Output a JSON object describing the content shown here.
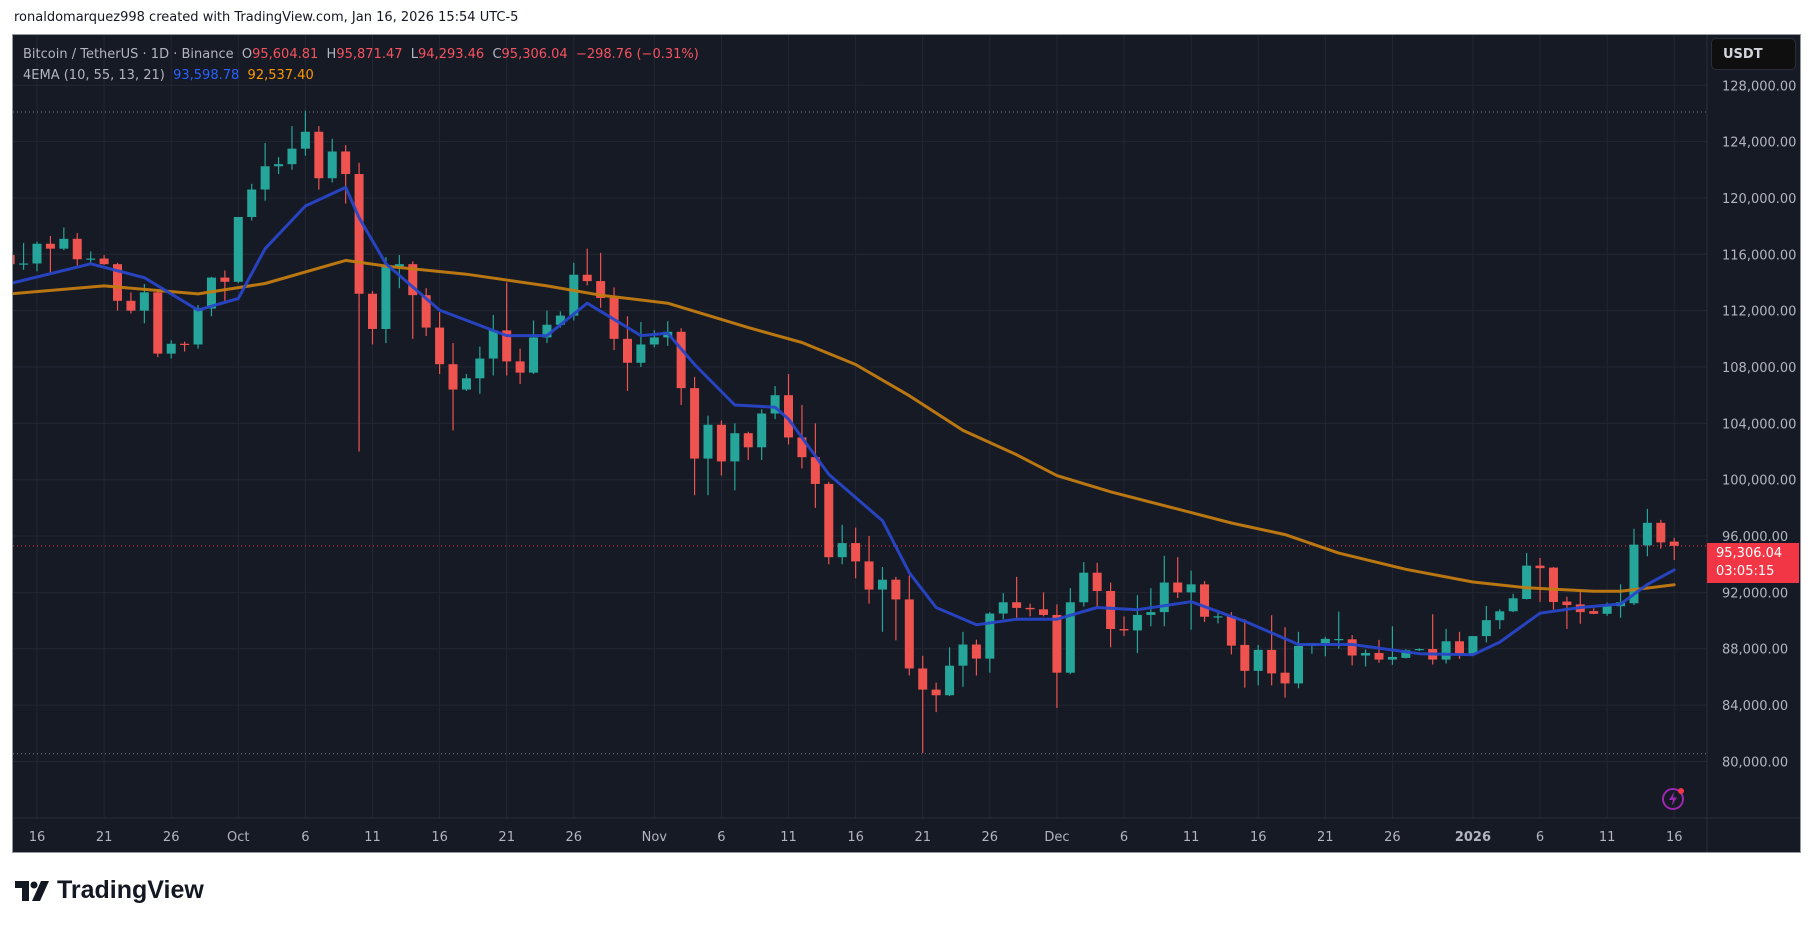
{
  "credit": "ronaldomarquez998 created with TradingView.com, Jan 16, 2026 15:54 UTC-5",
  "legend": {
    "symbol": "Bitcoin / TetherUS · 1D · Binance",
    "o_label": "O",
    "o": "95,604.81",
    "h_label": "H",
    "h": "95,871.47",
    "l_label": "L",
    "l": "94,293.46",
    "c_label": "C",
    "c": "95,306.04",
    "change": "−298.76 (−0.31%)",
    "indicator": "4EMA (10, 55, 13, 21)",
    "ema_fast": "93,598.78",
    "ema_slow": "92,537.40"
  },
  "price_axis": {
    "currency": "USDT",
    "ticks": [
      "128,000.00",
      "124,000.00",
      "120,000.00",
      "116,000.00",
      "112,000.00",
      "108,000.00",
      "104,000.00",
      "100,000.00",
      "96,000.00",
      "92,000.00",
      "88,000.00",
      "84,000.00",
      "80,000.00"
    ],
    "last_price": "95,306.04",
    "countdown": "03:05:15"
  },
  "time_axis": {
    "ticks": [
      {
        "date": "2025-09-16",
        "label": "16"
      },
      {
        "date": "2025-09-21",
        "label": "21"
      },
      {
        "date": "2025-09-26",
        "label": "26"
      },
      {
        "date": "2025-10-01",
        "label": "Oct"
      },
      {
        "date": "2025-10-06",
        "label": "6"
      },
      {
        "date": "2025-10-11",
        "label": "11"
      },
      {
        "date": "2025-10-16",
        "label": "16"
      },
      {
        "date": "2025-10-21",
        "label": "21"
      },
      {
        "date": "2025-10-26",
        "label": "26"
      },
      {
        "date": "2025-11-01",
        "label": "Nov"
      },
      {
        "date": "2025-11-06",
        "label": "6"
      },
      {
        "date": "2025-11-11",
        "label": "11"
      },
      {
        "date": "2025-11-16",
        "label": "16"
      },
      {
        "date": "2025-11-21",
        "label": "21"
      },
      {
        "date": "2025-11-26",
        "label": "26"
      },
      {
        "date": "2025-12-01",
        "label": "Dec"
      },
      {
        "date": "2025-12-06",
        "label": "6"
      },
      {
        "date": "2025-12-11",
        "label": "11"
      },
      {
        "date": "2025-12-16",
        "label": "16"
      },
      {
        "date": "2025-12-21",
        "label": "21"
      },
      {
        "date": "2025-12-26",
        "label": "26"
      },
      {
        "date": "2026-01-01",
        "label": "2026",
        "bold": true
      },
      {
        "date": "2026-01-06",
        "label": "6"
      },
      {
        "date": "2026-01-11",
        "label": "11"
      },
      {
        "date": "2026-01-16",
        "label": "16"
      }
    ]
  },
  "colors": {
    "up": "#26A69A",
    "down": "#EF5350",
    "ema_fast": "#2846C8",
    "ema_slow": "#C27B10",
    "background": "#161A25",
    "grid": "#232733"
  },
  "icons": {
    "alert": "lightning-icon",
    "logo": "tradingview-logo"
  },
  "brand": "TradingView",
  "chart_data": {
    "type": "candlestick",
    "ylim": [
      76000,
      130000
    ],
    "grid": true,
    "price_lines": {
      "high": 126100,
      "low": 80550,
      "last": 95306.04
    },
    "candles": [
      [
        "2025-09-14",
        115950,
        116100,
        115100,
        115300
      ],
      [
        "2025-09-15",
        115300,
        116800,
        114900,
        115350
      ],
      [
        "2025-09-16",
        115350,
        116900,
        114800,
        116750
      ],
      [
        "2025-09-17",
        116750,
        117300,
        114700,
        116400
      ],
      [
        "2025-09-18",
        116400,
        117900,
        116300,
        117100
      ],
      [
        "2025-09-19",
        117100,
        117500,
        115200,
        115650
      ],
      [
        "2025-09-20",
        115650,
        116200,
        115300,
        115700
      ],
      [
        "2025-09-21",
        115700,
        115950,
        115250,
        115300
      ],
      [
        "2025-09-22",
        115300,
        115400,
        112000,
        112700
      ],
      [
        "2025-09-23",
        112700,
        113300,
        111800,
        112000
      ],
      [
        "2025-09-24",
        112000,
        113900,
        111100,
        113300
      ],
      [
        "2025-09-25",
        113300,
        113500,
        108700,
        108950
      ],
      [
        "2025-09-26",
        108950,
        109900,
        108600,
        109650
      ],
      [
        "2025-09-27",
        109650,
        109800,
        109100,
        109600
      ],
      [
        "2025-09-28",
        109600,
        112400,
        109300,
        112150
      ],
      [
        "2025-09-29",
        112150,
        114400,
        111600,
        114350
      ],
      [
        "2025-09-30",
        114350,
        114850,
        112700,
        114050
      ],
      [
        "2025-10-01",
        114050,
        118650,
        113950,
        118650
      ],
      [
        "2025-10-02",
        118650,
        121000,
        118400,
        120600
      ],
      [
        "2025-10-03",
        120600,
        123900,
        119800,
        122250
      ],
      [
        "2025-10-04",
        122250,
        122900,
        121700,
        122400
      ],
      [
        "2025-10-05",
        122400,
        125100,
        122000,
        123500
      ],
      [
        "2025-10-06",
        123500,
        126200,
        123000,
        124700
      ],
      [
        "2025-10-07",
        124700,
        125100,
        120600,
        121400
      ],
      [
        "2025-10-08",
        121400,
        124200,
        121100,
        123300
      ],
      [
        "2025-10-09",
        123300,
        123750,
        119600,
        121700
      ],
      [
        "2025-10-10",
        121700,
        122500,
        102000,
        113200
      ],
      [
        "2025-10-11",
        113200,
        113400,
        109600,
        110700
      ],
      [
        "2025-10-12",
        110700,
        115800,
        109700,
        115100
      ],
      [
        "2025-10-13",
        115100,
        115950,
        113600,
        115300
      ],
      [
        "2025-10-14",
        115300,
        115500,
        110000,
        113100
      ],
      [
        "2025-10-15",
        113100,
        113600,
        110200,
        110800
      ],
      [
        "2025-10-16",
        110800,
        111900,
        107500,
        108200
      ],
      [
        "2025-10-17",
        108200,
        109700,
        103500,
        106400
      ],
      [
        "2025-10-18",
        106400,
        107500,
        106300,
        107200
      ],
      [
        "2025-10-19",
        107200,
        109450,
        106100,
        108600
      ],
      [
        "2025-10-20",
        108600,
        111700,
        107400,
        110600
      ],
      [
        "2025-10-21",
        110600,
        114000,
        107400,
        108400
      ],
      [
        "2025-10-22",
        108400,
        109300,
        106800,
        107600
      ],
      [
        "2025-10-23",
        107600,
        111300,
        107500,
        110100
      ],
      [
        "2025-10-24",
        110100,
        112000,
        109700,
        111000
      ],
      [
        "2025-10-25",
        111000,
        111950,
        110800,
        111650
      ],
      [
        "2025-10-26",
        111650,
        115400,
        111300,
        114550
      ],
      [
        "2025-10-27",
        114550,
        116400,
        113800,
        114100
      ],
      [
        "2025-10-28",
        114100,
        116100,
        112200,
        112900
      ],
      [
        "2025-10-29",
        112900,
        113650,
        109200,
        110000
      ],
      [
        "2025-10-30",
        110000,
        111600,
        106300,
        108300
      ],
      [
        "2025-10-31",
        108300,
        111200,
        108000,
        109600
      ],
      [
        "2025-11-01",
        109600,
        110600,
        109400,
        110100
      ],
      [
        "2025-11-02",
        110100,
        111250,
        109500,
        110500
      ],
      [
        "2025-11-03",
        110500,
        110750,
        105300,
        106500
      ],
      [
        "2025-11-04",
        106500,
        107300,
        98900,
        101500
      ],
      [
        "2025-11-05",
        101500,
        104550,
        98900,
        103900
      ],
      [
        "2025-11-06",
        103900,
        104200,
        100300,
        101300
      ],
      [
        "2025-11-07",
        101300,
        104000,
        99250,
        103300
      ],
      [
        "2025-11-08",
        103300,
        103400,
        101400,
        102300
      ],
      [
        "2025-11-09",
        102300,
        105000,
        101400,
        104700
      ],
      [
        "2025-11-10",
        104700,
        106650,
        104300,
        106000
      ],
      [
        "2025-11-11",
        106000,
        107500,
        102500,
        103000
      ],
      [
        "2025-11-12",
        103000,
        105300,
        100800,
        101600
      ],
      [
        "2025-11-13",
        101600,
        104000,
        98000,
        99700
      ],
      [
        "2025-11-14",
        99700,
        99850,
        94000,
        94500
      ],
      [
        "2025-11-15",
        94500,
        96800,
        94000,
        95500
      ],
      [
        "2025-11-16",
        95500,
        96600,
        93000,
        94200
      ],
      [
        "2025-11-17",
        94200,
        96000,
        91200,
        92200
      ],
      [
        "2025-11-18",
        92200,
        93800,
        89200,
        92900
      ],
      [
        "2025-11-19",
        92900,
        93100,
        88600,
        91500
      ],
      [
        "2025-11-20",
        91500,
        93200,
        86100,
        86600
      ],
      [
        "2025-11-21",
        86600,
        87500,
        80600,
        85100
      ],
      [
        "2025-11-22",
        85100,
        85600,
        83500,
        84700
      ],
      [
        "2025-11-23",
        84700,
        88100,
        84650,
        86800
      ],
      [
        "2025-11-24",
        86800,
        89200,
        85300,
        88300
      ],
      [
        "2025-11-25",
        88300,
        88650,
        86100,
        87300
      ],
      [
        "2025-11-26",
        87300,
        90600,
        86300,
        90500
      ],
      [
        "2025-11-27",
        90500,
        91950,
        90100,
        91300
      ],
      [
        "2025-11-28",
        91300,
        93100,
        90200,
        90900
      ],
      [
        "2025-11-29",
        90900,
        91200,
        90300,
        90800
      ],
      [
        "2025-11-30",
        90800,
        92000,
        90300,
        90400
      ],
      [
        "2025-12-01",
        90400,
        91150,
        83800,
        86300
      ],
      [
        "2025-12-02",
        86300,
        92300,
        86200,
        91300
      ],
      [
        "2025-12-03",
        91300,
        94150,
        91000,
        93400
      ],
      [
        "2025-12-04",
        93400,
        94100,
        90900,
        92100
      ],
      [
        "2025-12-05",
        92100,
        92700,
        88100,
        89400
      ],
      [
        "2025-12-06",
        89400,
        90300,
        88900,
        89300
      ],
      [
        "2025-12-07",
        89300,
        91800,
        87700,
        90400
      ],
      [
        "2025-12-08",
        90400,
        92300,
        89600,
        90600
      ],
      [
        "2025-12-09",
        90600,
        94600,
        89600,
        92700
      ],
      [
        "2025-12-10",
        92700,
        94500,
        91600,
        92000
      ],
      [
        "2025-12-11",
        92000,
        93550,
        89350,
        92570
      ],
      [
        "2025-12-12",
        92570,
        92800,
        89900,
        90270
      ],
      [
        "2025-12-13",
        90300,
        90650,
        89800,
        90300
      ],
      [
        "2025-12-14",
        90310,
        90600,
        87600,
        88220
      ],
      [
        "2025-12-15",
        88270,
        90100,
        85240,
        86430
      ],
      [
        "2025-12-16",
        86430,
        88270,
        85400,
        87920
      ],
      [
        "2025-12-17",
        87920,
        90380,
        85400,
        86250
      ],
      [
        "2025-12-18",
        86300,
        89530,
        84530,
        85540
      ],
      [
        "2025-12-19",
        85540,
        89200,
        85200,
        88200
      ],
      [
        "2025-12-20",
        88200,
        88410,
        87650,
        88400
      ],
      [
        "2025-12-21",
        88400,
        88850,
        87470,
        88700
      ],
      [
        "2025-12-22",
        88670,
        90640,
        88000,
        88690
      ],
      [
        "2025-12-23",
        88670,
        88970,
        86820,
        87520
      ],
      [
        "2025-12-24",
        87520,
        87950,
        86740,
        87700
      ],
      [
        "2025-12-25",
        87700,
        88630,
        87000,
        87230
      ],
      [
        "2025-12-26",
        87230,
        89600,
        86860,
        87420
      ],
      [
        "2025-12-27",
        87350,
        87960,
        87310,
        87900
      ],
      [
        "2025-12-28",
        87900,
        88030,
        87830,
        87980
      ],
      [
        "2025-12-29",
        87980,
        90450,
        86880,
        87230
      ],
      [
        "2025-12-30",
        87230,
        89410,
        86950,
        88530
      ],
      [
        "2025-12-31",
        88530,
        89200,
        87280,
        87650
      ],
      [
        "2026-01-01",
        87650,
        88900,
        87500,
        88900
      ],
      [
        "2026-01-02",
        88900,
        91040,
        88450,
        90030
      ],
      [
        "2026-01-03",
        90030,
        90800,
        89400,
        90660
      ],
      [
        "2026-01-04",
        90660,
        91900,
        90600,
        91580
      ],
      [
        "2026-01-05",
        91530,
        94800,
        91500,
        93900
      ],
      [
        "2026-01-06",
        93900,
        94450,
        91330,
        93720
      ],
      [
        "2026-01-07",
        93760,
        93800,
        90780,
        91320
      ],
      [
        "2026-01-08",
        91350,
        91700,
        89400,
        91100
      ],
      [
        "2026-01-09",
        91150,
        92120,
        89770,
        90600
      ],
      [
        "2026-01-10",
        90670,
        90880,
        90450,
        90480
      ],
      [
        "2026-01-11",
        90480,
        91280,
        90340,
        91020
      ],
      [
        "2026-01-12",
        91020,
        92570,
        90200,
        91300
      ],
      [
        "2026-01-13",
        91230,
        96520,
        91100,
        95390
      ],
      [
        "2026-01-14",
        95340,
        97930,
        94570,
        96940
      ],
      [
        "2026-01-15",
        96940,
        97150,
        95100,
        95550
      ],
      [
        "2026-01-16",
        95604.81,
        95871.47,
        94293.46,
        95306.04
      ]
    ],
    "ema_fast_points": [
      [
        "2025-09-14",
        113930
      ],
      [
        "2025-09-20",
        115330
      ],
      [
        "2025-09-24",
        114340
      ],
      [
        "2025-09-28",
        112040
      ],
      [
        "2025-10-01",
        112860
      ],
      [
        "2025-10-03",
        116400
      ],
      [
        "2025-10-06",
        119430
      ],
      [
        "2025-10-09",
        120750
      ],
      [
        "2025-10-10",
        118600
      ],
      [
        "2025-10-12",
        115330
      ],
      [
        "2025-10-16",
        112040
      ],
      [
        "2025-10-21",
        110230
      ],
      [
        "2025-10-24",
        110230
      ],
      [
        "2025-10-27",
        112530
      ],
      [
        "2025-10-31",
        110230
      ],
      [
        "2025-11-02",
        110400
      ],
      [
        "2025-11-04",
        108180
      ],
      [
        "2025-11-07",
        105300
      ],
      [
        "2025-11-10",
        105150
      ],
      [
        "2025-11-11",
        104300
      ],
      [
        "2025-11-14",
        100380
      ],
      [
        "2025-11-18",
        97090
      ],
      [
        "2025-11-20",
        93400
      ],
      [
        "2025-11-22",
        90930
      ],
      [
        "2025-11-25",
        89700
      ],
      [
        "2025-11-28",
        90100
      ],
      [
        "2025-12-01",
        90100
      ],
      [
        "2025-12-04",
        90930
      ],
      [
        "2025-12-07",
        90770
      ],
      [
        "2025-12-11",
        91340
      ],
      [
        "2025-12-15",
        89950
      ],
      [
        "2025-12-19",
        88300
      ],
      [
        "2025-12-23",
        88300
      ],
      [
        "2025-12-28",
        87650
      ],
      [
        "2026-01-01",
        87570
      ],
      [
        "2026-01-03",
        88470
      ],
      [
        "2026-01-06",
        90520
      ],
      [
        "2026-01-09",
        90930
      ],
      [
        "2026-01-12",
        91180
      ],
      [
        "2026-01-14",
        92570
      ],
      [
        "2026-01-16",
        93598.78
      ]
    ],
    "ema_slow_points": [
      [
        "2025-09-14",
        113190
      ],
      [
        "2025-09-21",
        113760
      ],
      [
        "2025-09-28",
        113190
      ],
      [
        "2025-10-03",
        113930
      ],
      [
        "2025-10-09",
        115570
      ],
      [
        "2025-10-12",
        115160
      ],
      [
        "2025-10-18",
        114590
      ],
      [
        "2025-10-24",
        113760
      ],
      [
        "2025-10-28",
        113100
      ],
      [
        "2025-11-02",
        112530
      ],
      [
        "2025-11-08",
        110800
      ],
      [
        "2025-11-12",
        109740
      ],
      [
        "2025-11-16",
        108180
      ],
      [
        "2025-11-20",
        105960
      ],
      [
        "2025-11-24",
        103500
      ],
      [
        "2025-11-28",
        101770
      ],
      [
        "2025-12-01",
        100290
      ],
      [
        "2025-12-05",
        99140
      ],
      [
        "2025-12-10",
        97910
      ],
      [
        "2025-12-14",
        96930
      ],
      [
        "2025-12-18",
        96100
      ],
      [
        "2025-12-22",
        94790
      ],
      [
        "2025-12-27",
        93640
      ],
      [
        "2026-01-01",
        92740
      ],
      [
        "2026-01-05",
        92330
      ],
      [
        "2026-01-10",
        92080
      ],
      [
        "2026-01-12",
        92080
      ],
      [
        "2026-01-16",
        92537.4
      ]
    ]
  }
}
